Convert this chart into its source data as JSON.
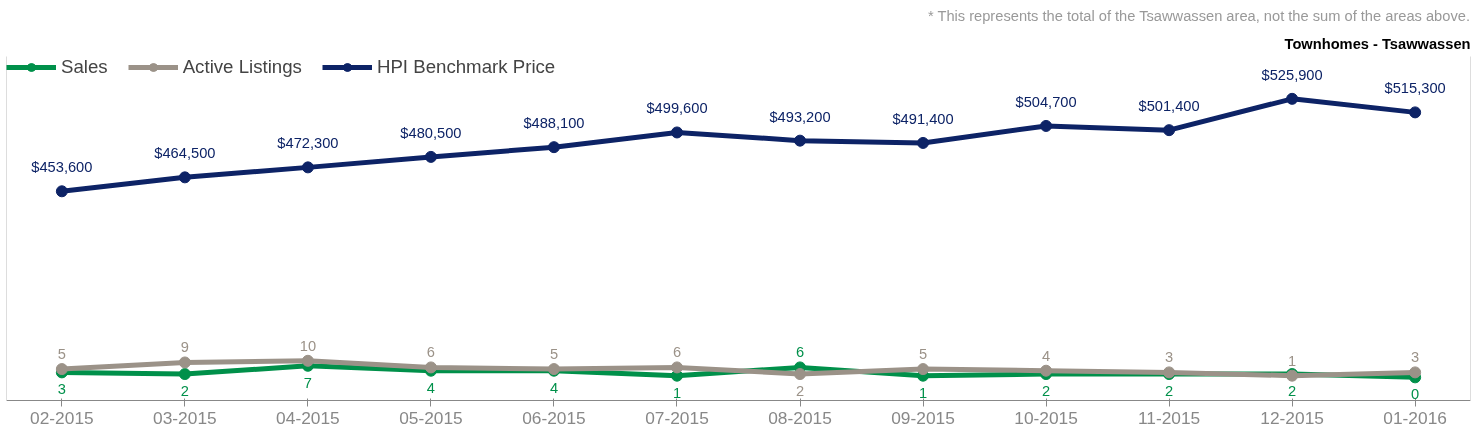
{
  "chart_data": {
    "type": "line",
    "title": "Townhomes - Tsawwassen",
    "annotations": [
      "* This represents the total of the Tsawwassen area, not the sum of the areas above."
    ],
    "categories": [
      "02-2015",
      "03-2015",
      "04-2015",
      "05-2015",
      "06-2015",
      "07-2015",
      "08-2015",
      "09-2015",
      "10-2015",
      "11-2015",
      "12-2015",
      "01-2016"
    ],
    "series": [
      {
        "name": "Sales",
        "color": "#00904a",
        "values": [
          3,
          2,
          7,
          4,
          4,
          1,
          6,
          1,
          2,
          2,
          2,
          0
        ]
      },
      {
        "name": "Active Listings",
        "color": "#9b9288",
        "values": [
          5,
          9,
          10,
          6,
          5,
          6,
          2,
          5,
          4,
          3,
          1,
          3
        ]
      },
      {
        "name": "HPI Benchmark Price",
        "color": "#0d2366",
        "axis": "y2",
        "values": [
          453600,
          464500,
          472300,
          480500,
          488100,
          499600,
          493200,
          491400,
          504700,
          501400,
          525900,
          515300
        ],
        "value_labels": [
          "$453,600",
          "$464,500",
          "$472,300",
          "$480,500",
          "$488,100",
          "$499,600",
          "$493,200",
          "$491,400",
          "$504,700",
          "$501,400",
          "$525,900",
          "$515,300"
        ]
      }
    ],
    "ylim": [
      -14,
      194
    ],
    "y2lim": [
      290000,
      559000
    ],
    "tick_labels": "x",
    "data_labels": true,
    "marker": "circle",
    "line_style": "solid",
    "legend": "top left",
    "grid": false
  }
}
